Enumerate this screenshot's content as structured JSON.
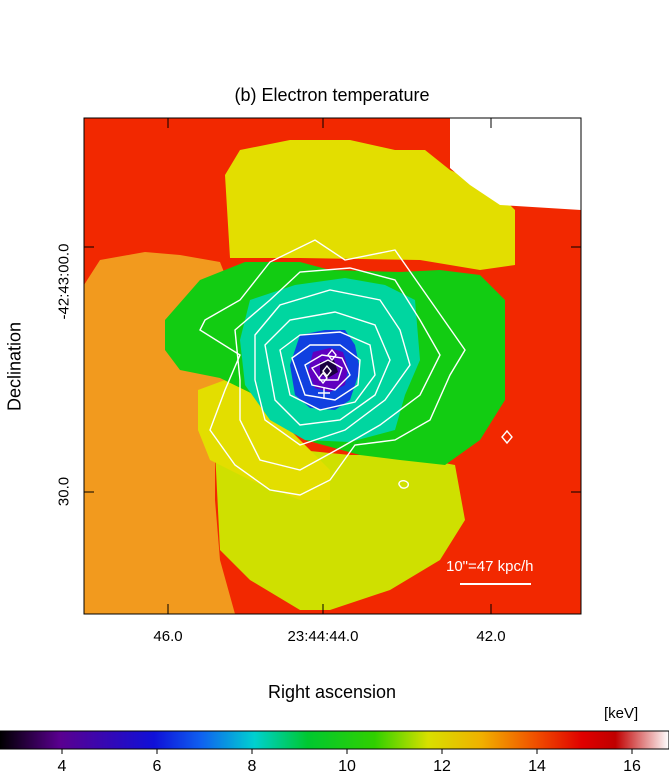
{
  "chart_data": {
    "type": "heatmap",
    "title": "(b) Electron temperature",
    "xlabel": "Right ascension",
    "ylabel": "Declination",
    "x_ticks": [
      "46.0",
      "23:44:44.0",
      "42.0"
    ],
    "y_ticks": [
      "-42:43:00.0",
      "30.0"
    ],
    "colorbar": {
      "unit": "[keV]",
      "ticks": [
        4,
        6,
        8,
        10,
        12,
        14,
        16
      ],
      "range": [
        2.6,
        17.3
      ]
    },
    "scale_bar_label": "10\"=47 kpc/h",
    "temperature_regions_keV": [
      {
        "region": "outer-west",
        "value": 14.2
      },
      {
        "region": "outer-southeast",
        "value": 13.0
      },
      {
        "region": "outer-north",
        "value": 11.8
      },
      {
        "region": "outer-south",
        "value": 11.6
      },
      {
        "region": "mid-east",
        "value": 9.9
      },
      {
        "region": "inner-ring",
        "value": 8.6
      },
      {
        "region": "core",
        "value": 5.0
      },
      {
        "region": "peak",
        "value": 4.0
      }
    ],
    "grid": false,
    "legend": "none"
  },
  "colors": {
    "red": "#f22800",
    "orange": "#f29a1e",
    "yellow": "#e3de00",
    "yellow_green": "#cfe000",
    "green": "#12cc12",
    "cyan": "#00d6a0",
    "blue": "#1040e0",
    "violet": "#6000c0",
    "contour": "#ffffff"
  }
}
